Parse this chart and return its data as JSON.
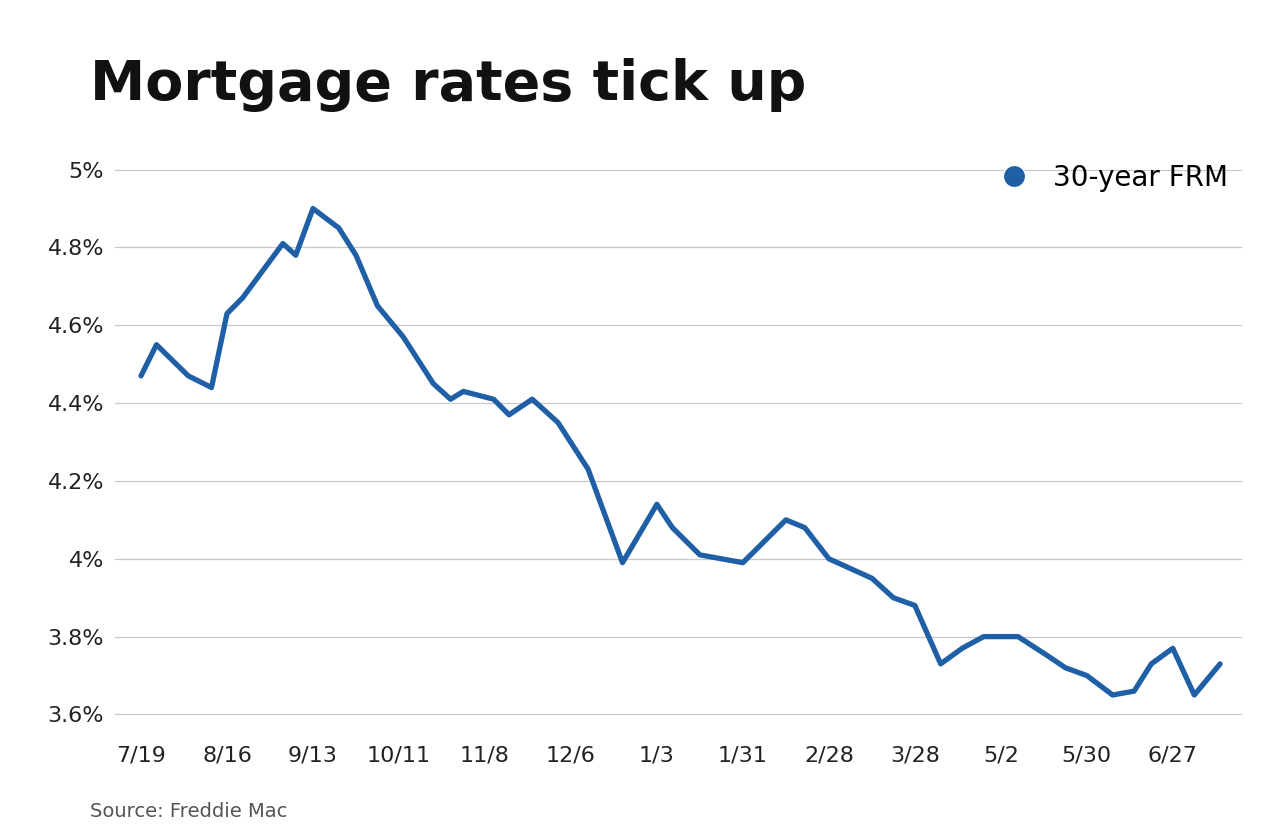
{
  "title": "Mortgage rates tick up",
  "legend_label": "30-year FRM",
  "source": "Source: Freddie Mac",
  "line_color": "#1f5fa6",
  "background_color": "#ffffff",
  "x_labels": [
    "7/19",
    "8/16",
    "9/13",
    "10/11",
    "11/8",
    "12/6",
    "1/3",
    "1/31",
    "2/28",
    "3/28",
    "5/2",
    "5/30",
    "6/27"
  ],
  "x_data": [
    0.0,
    0.18,
    0.55,
    0.82,
    1.0,
    1.18,
    1.65,
    1.8,
    2.0,
    2.3,
    2.5,
    2.75,
    3.05,
    3.4,
    3.6,
    3.75,
    4.1,
    4.28,
    4.55,
    4.85,
    5.2,
    5.6,
    6.0,
    6.18,
    6.5,
    7.0,
    7.5,
    7.72,
    8.0,
    8.5,
    8.75,
    9.0,
    9.3,
    9.55,
    9.8,
    10.2,
    10.55,
    10.75,
    11.0,
    11.3,
    11.55,
    11.75,
    12.0,
    12.25,
    12.55
  ],
  "y_data": [
    4.47,
    4.55,
    4.47,
    4.44,
    4.63,
    4.67,
    4.81,
    4.78,
    4.9,
    4.85,
    4.78,
    4.65,
    4.57,
    4.45,
    4.41,
    4.43,
    4.41,
    4.37,
    4.41,
    4.35,
    4.23,
    3.99,
    4.14,
    4.08,
    4.01,
    3.99,
    4.1,
    4.08,
    4.0,
    3.95,
    3.9,
    3.88,
    3.73,
    3.77,
    3.8,
    3.8,
    3.75,
    3.72,
    3.7,
    3.65,
    3.66,
    3.73,
    3.77,
    3.65,
    3.73
  ],
  "ylim": [
    3.55,
    5.05
  ],
  "yticks": [
    3.6,
    3.8,
    4.0,
    4.2,
    4.4,
    4.6,
    4.8,
    5.0
  ],
  "ytick_labels": [
    "3.6%",
    "3.8%",
    "4%",
    "4.2%",
    "4.4%",
    "4.6%",
    "4.8%",
    "5%"
  ],
  "xlim": [
    -0.3,
    12.8
  ],
  "title_fontsize": 40,
  "axis_fontsize": 16,
  "legend_fontsize": 20,
  "source_fontsize": 14,
  "line_width": 3.8,
  "legend_marker_color": "#1f5fa6",
  "grid_color": "#c8c8c8"
}
